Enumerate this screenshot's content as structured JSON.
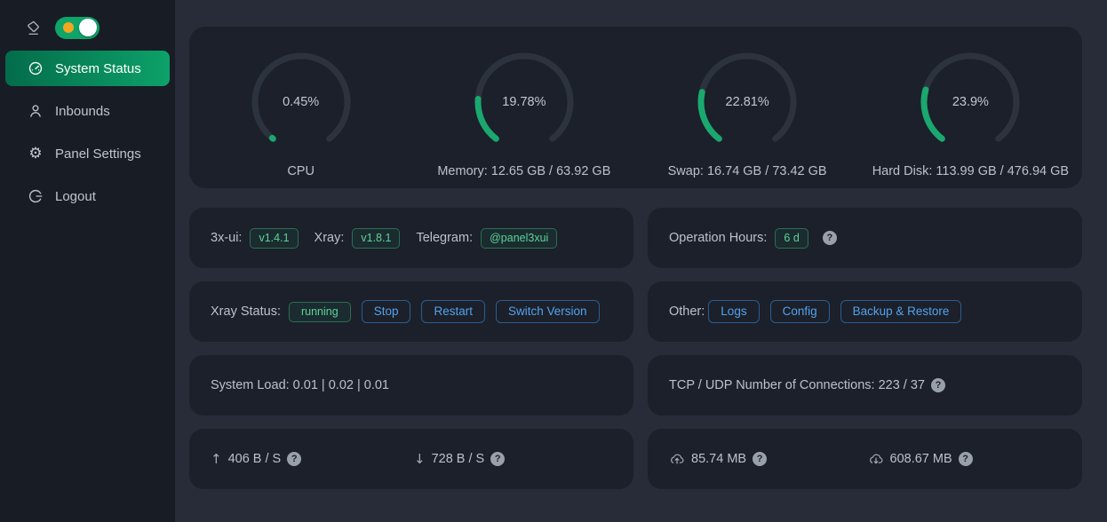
{
  "colors": {
    "accent_green": "#1aa86f",
    "gauge_track": "#2d333e",
    "menu_gradient_start": "#046c4b",
    "menu_gradient_end": "#0da169",
    "toggle_green": "#0fa46a",
    "toggle_sun_orange": "#f2a71f",
    "button_blue": "#54a2ec",
    "tag_green": "#5fd295",
    "card_bg": "#1b202a",
    "page_bg": "#272c38",
    "sidebar_bg": "#181c25"
  },
  "sidebar": {
    "theme_toggle": {
      "state": "on",
      "icon": "theme-paint-icon",
      "sun_icon": "sun-dot-icon"
    },
    "items": [
      {
        "label": "System Status",
        "icon": "dashboard-icon",
        "active": true
      },
      {
        "label": "Inbounds",
        "icon": "user-icon",
        "active": false
      },
      {
        "label": "Panel Settings",
        "icon": "gear-icon",
        "active": false
      },
      {
        "label": "Logout",
        "icon": "logout-icon",
        "active": false
      }
    ]
  },
  "chart_data": {
    "type": "gauge",
    "legend_position": "below-each-gauge",
    "gauges": [
      {
        "percent": 0.45,
        "display": "0.45%",
        "label": "CPU"
      },
      {
        "percent": 19.78,
        "display": "19.78%",
        "label": "Memory: 12.65 GB / 63.92 GB"
      },
      {
        "percent": 22.81,
        "display": "22.81%",
        "label": "Swap: 16.74 GB / 73.42 GB"
      },
      {
        "percent": 23.9,
        "display": "23.9%",
        "label": "Hard Disk: 113.99 GB / 476.94 GB"
      }
    ]
  },
  "versions_card": {
    "groups": [
      {
        "label": "3x-ui:",
        "tag": "v1.4.1"
      },
      {
        "label": "Xray:",
        "tag": "v1.8.1"
      },
      {
        "label": "Telegram:",
        "tag": "@panel3xui"
      }
    ]
  },
  "operation_card": {
    "label": "Operation Hours:",
    "tag": "6 d",
    "help_icon": "question-icon"
  },
  "xray_card": {
    "label": "Xray Status:",
    "status_tag": "running",
    "buttons": [
      {
        "label": "Stop"
      },
      {
        "label": "Restart"
      },
      {
        "label": "Switch Version"
      }
    ]
  },
  "other_card": {
    "label": "Other:",
    "buttons": [
      {
        "label": "Logs"
      },
      {
        "label": "Config"
      },
      {
        "label": "Backup & Restore"
      }
    ]
  },
  "load_card": {
    "text": "System Load: 0.01 | 0.02 | 0.01"
  },
  "connections_card": {
    "text": "TCP / UDP Number of Connections: 223 / 37",
    "help_icon": "question-icon"
  },
  "speed_card": {
    "up": {
      "icon": "arrow-up-icon",
      "glyph": "↑",
      "value": "406 B / S",
      "help_icon": "question-icon"
    },
    "down": {
      "icon": "arrow-down-icon",
      "glyph": "↓",
      "value": "728 B / S",
      "help_icon": "question-icon"
    }
  },
  "traffic_card": {
    "sent": {
      "icon": "cloud-upload-icon",
      "value": "85.74 MB",
      "help_icon": "question-icon"
    },
    "received": {
      "icon": "cloud-download-icon",
      "value": "608.67 MB",
      "help_icon": "question-icon"
    }
  },
  "help_glyph": "?"
}
